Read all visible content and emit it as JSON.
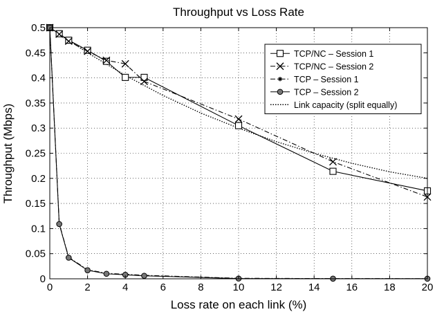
{
  "chart_data": {
    "type": "line",
    "title": "Throughput vs Loss Rate",
    "xlabel": "Loss rate on each link (%)",
    "ylabel": "Throughput (Mbps)",
    "xlim": [
      0,
      20
    ],
    "ylim": [
      0,
      0.5
    ],
    "xticks": [
      0,
      2,
      4,
      6,
      8,
      10,
      12,
      14,
      16,
      18,
      20
    ],
    "yticks": [
      0,
      0.05,
      0.1,
      0.15,
      0.2,
      0.25,
      0.3,
      0.35,
      0.4,
      0.45,
      0.5
    ],
    "ytick_labels": [
      "0",
      "0.05",
      "0.1",
      "0.15",
      "0.2",
      "0.25",
      "0.3",
      "0.35",
      "0.4",
      "0.45",
      "0.5"
    ],
    "grid": true,
    "legend_position": "top-right",
    "series": [
      {
        "name": "TCP/NC – Session 1",
        "line_style": "solid",
        "marker": "square",
        "x": [
          0,
          0.5,
          1,
          2,
          3,
          4,
          5,
          10,
          15,
          20
        ],
        "y": [
          0.5,
          0.488,
          0.475,
          0.455,
          0.433,
          0.401,
          0.401,
          0.305,
          0.214,
          0.175
        ]
      },
      {
        "name": "TCP/NC – Session 2",
        "line_style": "dashdot",
        "marker": "x",
        "x": [
          0,
          0.5,
          1,
          2,
          3,
          4,
          5,
          10,
          15,
          20
        ],
        "y": [
          0.5,
          0.487,
          0.473,
          0.453,
          0.435,
          0.428,
          0.393,
          0.318,
          0.233,
          0.163
        ]
      },
      {
        "name": "TCP – Session 1",
        "line_style": "dashdot",
        "marker": "star",
        "x": [
          0,
          0.5,
          1,
          2,
          3,
          4,
          5,
          10,
          15,
          20
        ],
        "y": [
          0.5,
          0.11,
          0.043,
          0.018,
          0.011,
          0.009,
          0.007,
          0.001,
          0.0005,
          0.0003
        ]
      },
      {
        "name": "TCP – Session 2",
        "line_style": "solid",
        "marker": "circle",
        "x": [
          0,
          0.5,
          1,
          2,
          3,
          4,
          5,
          10,
          15,
          20
        ],
        "y": [
          0.5,
          0.109,
          0.042,
          0.017,
          0.01,
          0.008,
          0.006,
          0.0005,
          0.0003,
          0.0002
        ]
      },
      {
        "name": "Link capacity (split equally)",
        "line_style": "dotted",
        "marker": "none",
        "x": [
          0,
          2,
          4,
          6,
          8,
          10,
          12,
          14,
          16,
          18,
          20
        ],
        "y": [
          0.5,
          0.45,
          0.405,
          0.365,
          0.33,
          0.3,
          0.273,
          0.25,
          0.23,
          0.213,
          0.2
        ]
      }
    ]
  }
}
